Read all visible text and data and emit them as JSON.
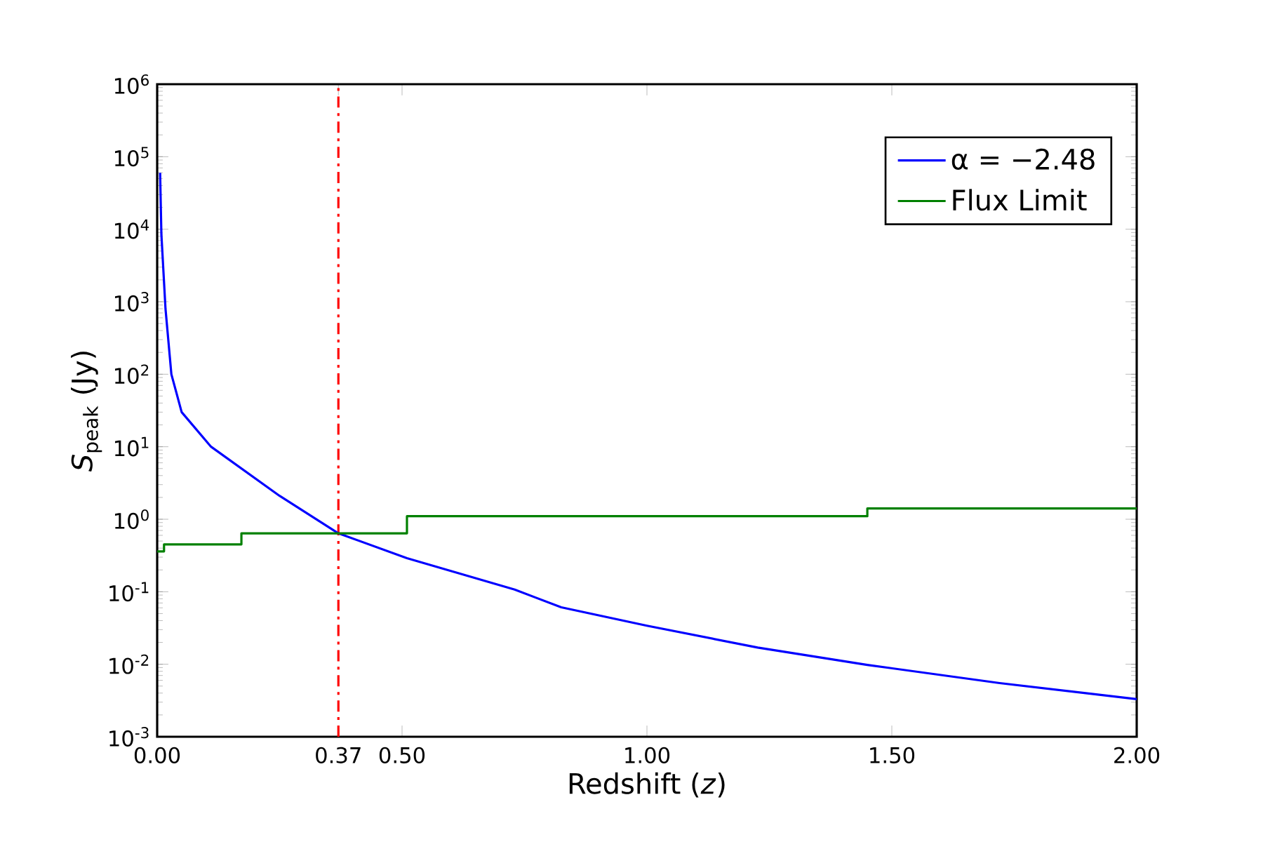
{
  "chart_data": {
    "type": "line",
    "xlabel": "Redshift (*z*)",
    "ylabel": "*S*$_{peak}$ (Jy)",
    "xlim": [
      0,
      2
    ],
    "ylim": [
      0.001,
      1000000
    ],
    "log": "y",
    "legend": "top right",
    "marker": "none",
    "grid": false,
    "xticks": [
      {
        "value": 0,
        "label": "0.00"
      },
      {
        "value": 0.37,
        "label": "0.37"
      },
      {
        "value": 0.5,
        "label": "0.50"
      },
      {
        "value": 1,
        "label": "1.00"
      },
      {
        "value": 1.5,
        "label": "1.50"
      },
      {
        "value": 2,
        "label": "2.00"
      }
    ],
    "yticks": [
      {
        "value": 0.001,
        "label": "10$^{-3}$"
      },
      {
        "value": 0.01,
        "label": "10$^{-2}$"
      },
      {
        "value": 0.1,
        "label": "10$^{-1}$"
      },
      {
        "value": 1,
        "label": "10$^{0}$"
      },
      {
        "value": 10,
        "label": "10$^{1}$"
      },
      {
        "value": 100,
        "label": "10$^{2}$"
      },
      {
        "value": 1000,
        "label": "10$^{3}$"
      },
      {
        "value": 10000,
        "label": "10$^{4}$"
      },
      {
        "value": 100000,
        "label": "10$^{5}$"
      },
      {
        "value": 1000000,
        "label": "10$^{6}$"
      }
    ],
    "series": [
      {
        "name": "α = −2.48",
        "color": "#0000ff",
        "x": [
          0.006,
          0.0086,
          0.017,
          0.029,
          0.05,
          0.11,
          0.25,
          0.37,
          0.51,
          0.73,
          0.825,
          1.0,
          1.226,
          1.45,
          1.72,
          2.0
        ],
        "values": [
          60000,
          8500,
          800,
          100,
          30,
          10,
          2.1,
          0.64,
          0.29,
          0.107,
          0.061,
          0.034,
          0.017,
          0.0098,
          0.0055,
          0.0033
        ]
      },
      {
        "name": "Flux Limit",
        "color": "#008000",
        "type": "step",
        "x": [
          0,
          0.014,
          0.172,
          0.51,
          1.45,
          2.0
        ],
        "values": [
          0.36,
          0.45,
          0.64,
          1.1,
          1.41,
          1.41
        ]
      }
    ],
    "ref_lines": [
      {
        "axis": "x",
        "value": 0.37,
        "color": "#ff0000",
        "line_style": "dashdot"
      }
    ]
  }
}
